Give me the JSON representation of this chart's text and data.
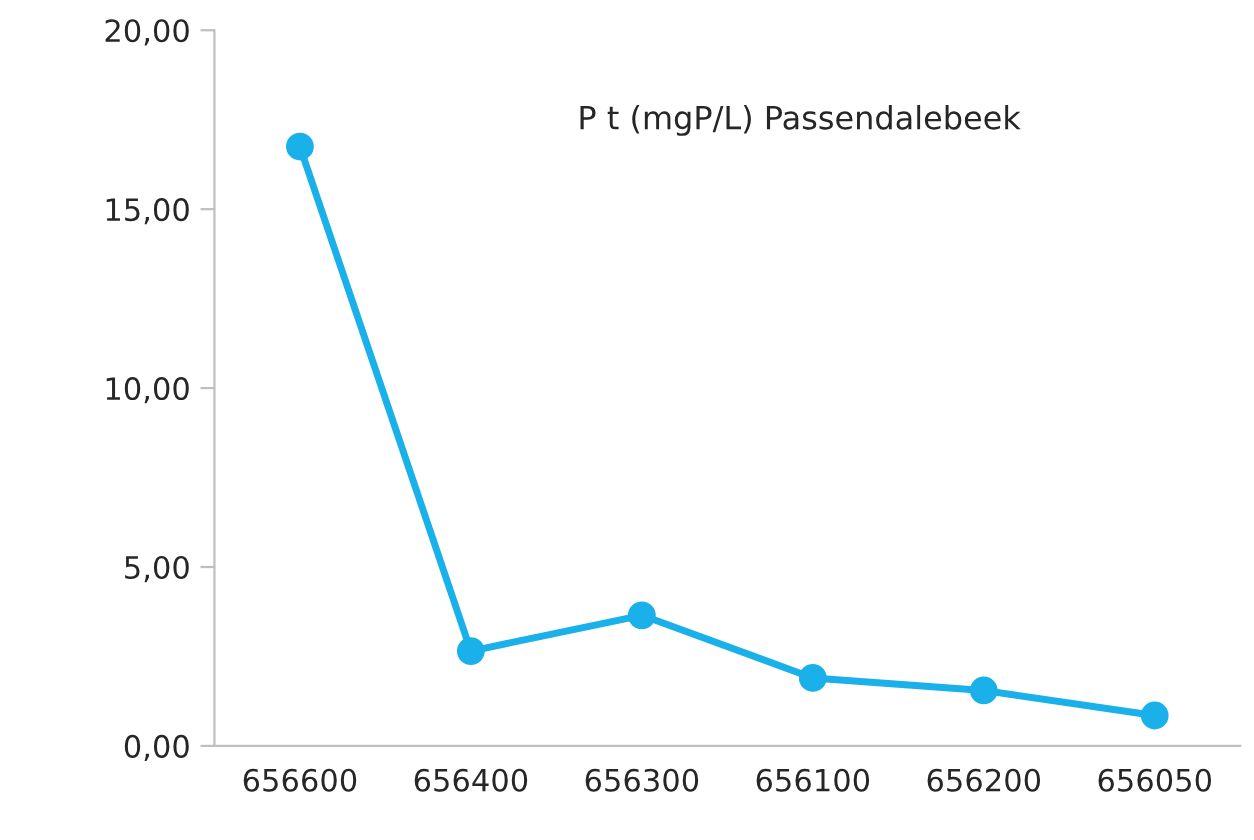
{
  "chart_data": {
    "type": "line",
    "title": "P t (mgP/L) Passendalebeek",
    "categories": [
      "656600",
      "656400",
      "656300",
      "656100",
      "656200",
      "656050"
    ],
    "series": [
      {
        "color": "#1ab0ea",
        "values": [
          16.75,
          2.65,
          3.65,
          1.9,
          1.55,
          0.85
        ]
      }
    ],
    "ylim": [
      0,
      20
    ],
    "yticks": [
      {
        "value": 0,
        "label": "0,00"
      },
      {
        "value": 5,
        "label": "5,00"
      },
      {
        "value": 10,
        "label": "10,00"
      },
      {
        "value": 15,
        "label": "15,00"
      },
      {
        "value": 20,
        "label": "20,00"
      }
    ],
    "marker": "circle",
    "line_style": "solid",
    "grid": false,
    "legend": false
  }
}
